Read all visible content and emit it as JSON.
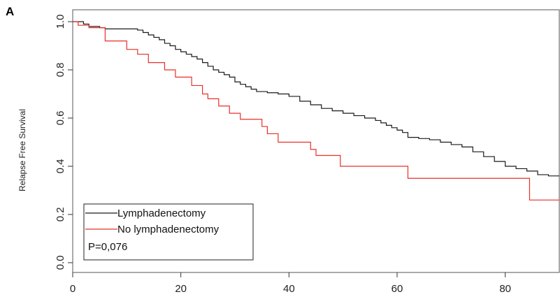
{
  "panel_label": "A",
  "chart_data": {
    "type": "line",
    "title": "",
    "xlabel": "",
    "ylabel": "Relapse Free Survival",
    "xlim": [
      0,
      90
    ],
    "ylim": [
      0,
      1.05
    ],
    "x_ticks": [
      "0",
      "20",
      "40",
      "60",
      "80"
    ],
    "x_tick_values": [
      0,
      20,
      40,
      60,
      80
    ],
    "y_ticks": [
      "0.0",
      "0.2",
      "0.4",
      "0.6",
      "0.8",
      "1.0"
    ],
    "y_tick_values": [
      0,
      0.2,
      0.4,
      0.6,
      0.8,
      1.0
    ],
    "grid": false,
    "legend_position": "bottom-left",
    "annotation": "P=0,076",
    "series": [
      {
        "name": "Lymphadenectomy",
        "color": "#1a1a1a",
        "step": true,
        "x": [
          0,
          2,
          3,
          5,
          6,
          12,
          13,
          14,
          15,
          16,
          17,
          18,
          19,
          20,
          21,
          22,
          23,
          24,
          25,
          26,
          27,
          28,
          29,
          30,
          31,
          32,
          33,
          34,
          36,
          38,
          40,
          42,
          44,
          46,
          48,
          50,
          52,
          54,
          56,
          57,
          58,
          59,
          60,
          61,
          62,
          64,
          66,
          68,
          70,
          72,
          74,
          76,
          78,
          80,
          82,
          84,
          86,
          88,
          90
        ],
        "y": [
          1.0,
          0.99,
          0.98,
          0.975,
          0.97,
          0.965,
          0.955,
          0.945,
          0.935,
          0.925,
          0.91,
          0.9,
          0.885,
          0.875,
          0.865,
          0.855,
          0.845,
          0.83,
          0.815,
          0.8,
          0.79,
          0.78,
          0.77,
          0.75,
          0.74,
          0.73,
          0.72,
          0.71,
          0.705,
          0.7,
          0.69,
          0.67,
          0.655,
          0.64,
          0.63,
          0.62,
          0.61,
          0.6,
          0.59,
          0.58,
          0.57,
          0.56,
          0.55,
          0.54,
          0.52,
          0.515,
          0.51,
          0.5,
          0.49,
          0.48,
          0.46,
          0.44,
          0.42,
          0.4,
          0.39,
          0.38,
          0.365,
          0.36,
          0.36
        ]
      },
      {
        "name": "No lymphadenectomy",
        "color": "#e8302a",
        "step": true,
        "x": [
          0,
          1,
          3,
          6,
          10,
          12,
          14,
          17,
          19,
          22,
          24,
          25,
          27,
          29,
          31,
          35,
          36,
          38,
          44,
          45,
          49.5,
          62,
          84.5,
          90
        ],
        "y": [
          1.0,
          0.985,
          0.975,
          0.92,
          0.885,
          0.865,
          0.83,
          0.8,
          0.77,
          0.735,
          0.7,
          0.68,
          0.65,
          0.62,
          0.595,
          0.565,
          0.535,
          0.5,
          0.47,
          0.445,
          0.4,
          0.35,
          0.26,
          0.26
        ]
      }
    ]
  }
}
